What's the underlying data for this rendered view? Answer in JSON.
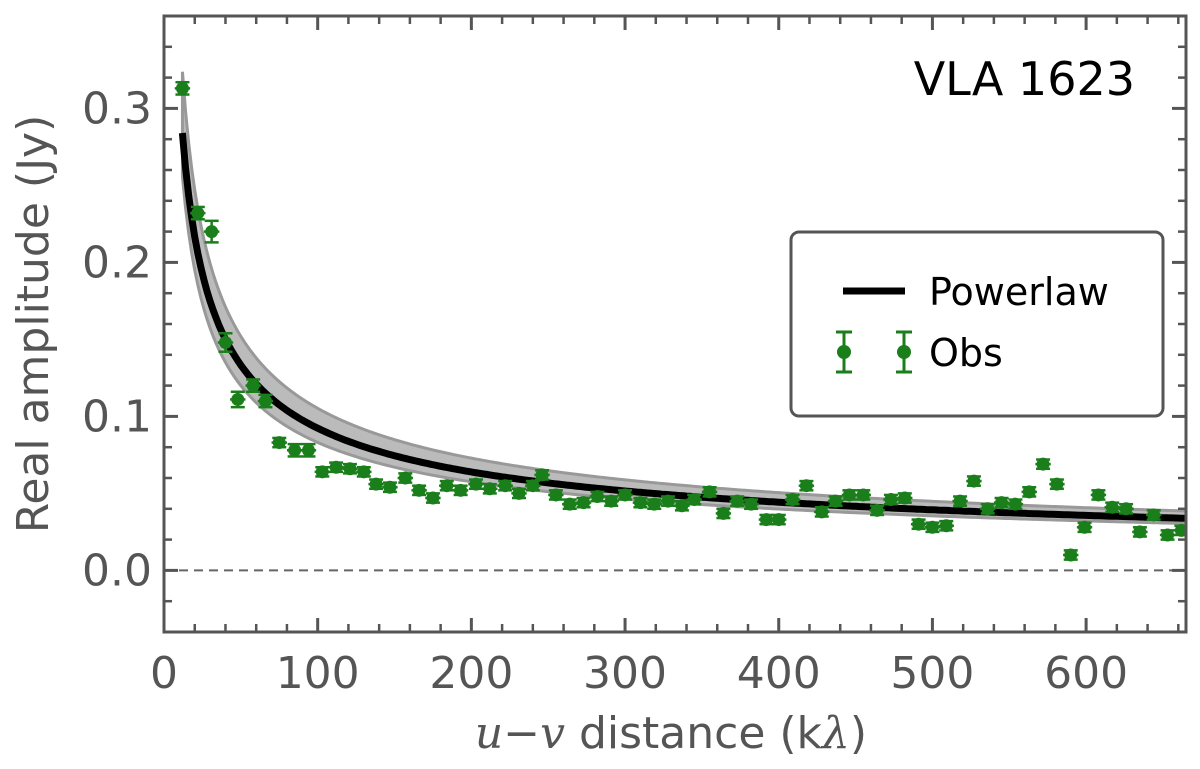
{
  "chart_data": {
    "type": "scatter",
    "title": "VLA 1623",
    "xlabel_parts": [
      "u",
      "−",
      "v",
      " distance (k",
      "λ",
      ")"
    ],
    "ylabel": "Real amplitude (Jy)",
    "xlim": [
      0,
      665
    ],
    "ylim": [
      -0.04,
      0.36
    ],
    "xticks": [
      0,
      100,
      200,
      300,
      400,
      500,
      600
    ],
    "xtick_labels": [
      "0",
      "100",
      "200",
      "300",
      "400",
      "500",
      "600"
    ],
    "xticks_minor": [
      20,
      40,
      60,
      80,
      120,
      140,
      160,
      180,
      220,
      240,
      260,
      280,
      320,
      340,
      360,
      380,
      420,
      440,
      460,
      480,
      520,
      540,
      560,
      580,
      620,
      640,
      660
    ],
    "yticks": [
      0.0,
      0.1,
      0.2,
      0.3
    ],
    "ytick_labels": [
      "0.0",
      "0.1",
      "0.2",
      "0.3"
    ],
    "yticks_minor": [
      -0.02,
      0.02,
      0.04,
      0.06,
      0.08,
      0.12,
      0.14,
      0.16,
      0.18,
      0.22,
      0.24,
      0.26,
      0.28,
      0.32,
      0.34
    ],
    "zero_line": 0.0,
    "legend": {
      "position": "right",
      "entries": [
        {
          "label": "Powerlaw",
          "kind": "line"
        },
        {
          "label": "Obs",
          "kind": "errorbar"
        }
      ]
    },
    "model": {
      "name": "Powerlaw",
      "form": "a * x^(-b)",
      "a": 1.06,
      "b": 0.53,
      "x_start": 12,
      "band_upper_factor": 1.14,
      "band_lower_factor": 0.9
    },
    "series": [
      {
        "name": "Obs",
        "x": [
          12,
          22,
          31,
          40,
          48,
          58,
          66,
          75,
          85,
          94,
          103,
          112,
          121,
          130,
          138,
          147,
          157,
          166,
          175,
          184,
          193,
          203,
          212,
          222,
          231,
          240,
          246,
          255,
          264,
          273,
          282,
          291,
          300,
          310,
          319,
          328,
          337,
          345,
          355,
          364,
          373,
          382,
          392,
          400,
          409,
          418,
          428,
          437,
          446,
          455,
          464,
          473,
          482,
          491,
          500,
          509,
          518,
          527,
          536,
          545,
          554,
          563,
          572,
          581,
          590,
          599,
          608,
          617,
          626,
          635,
          644,
          653,
          662
        ],
        "y": [
          0.313,
          0.232,
          0.22,
          0.148,
          0.111,
          0.12,
          0.11,
          0.083,
          0.078,
          0.078,
          0.064,
          0.067,
          0.066,
          0.064,
          0.056,
          0.054,
          0.06,
          0.052,
          0.047,
          0.055,
          0.052,
          0.056,
          0.053,
          0.055,
          0.05,
          0.055,
          0.062,
          0.049,
          0.043,
          0.044,
          0.048,
          0.045,
          0.049,
          0.044,
          0.043,
          0.045,
          0.042,
          0.046,
          0.051,
          0.037,
          0.045,
          0.043,
          0.033,
          0.033,
          0.046,
          0.055,
          0.038,
          0.045,
          0.049,
          0.049,
          0.039,
          0.046,
          0.047,
          0.03,
          0.028,
          0.029,
          0.045,
          0.058,
          0.04,
          0.044,
          0.043,
          0.051,
          0.069,
          0.056,
          0.01,
          0.028,
          0.049,
          0.041,
          0.04,
          0.025,
          0.036,
          0.023,
          0.026
        ],
        "yerr": [
          0.004,
          0.004,
          0.007,
          0.006,
          0.005,
          0.004,
          0.004,
          0.003,
          0.004,
          0.004,
          0.003,
          0.003,
          0.003,
          0.003,
          0.003,
          0.003,
          0.003,
          0.003,
          0.003,
          0.003,
          0.003,
          0.003,
          0.003,
          0.003,
          0.003,
          0.003,
          0.003,
          0.003,
          0.003,
          0.003,
          0.003,
          0.003,
          0.003,
          0.003,
          0.003,
          0.003,
          0.003,
          0.003,
          0.003,
          0.003,
          0.003,
          0.003,
          0.003,
          0.003,
          0.003,
          0.003,
          0.003,
          0.003,
          0.003,
          0.003,
          0.003,
          0.003,
          0.003,
          0.003,
          0.003,
          0.003,
          0.003,
          0.003,
          0.003,
          0.003,
          0.003,
          0.003,
          0.003,
          0.003,
          0.003,
          0.003,
          0.003,
          0.003,
          0.003,
          0.003,
          0.003,
          0.003,
          0.003
        ],
        "xerr": [
          5,
          5,
          5,
          5,
          5,
          5,
          5,
          5,
          5,
          5,
          5,
          5,
          5,
          5,
          5,
          5,
          5,
          5,
          5,
          5,
          5,
          5,
          5,
          5,
          5,
          5,
          5,
          5,
          5,
          5,
          5,
          5,
          5,
          5,
          5,
          5,
          5,
          5,
          5,
          5,
          5,
          5,
          5,
          5,
          5,
          5,
          5,
          5,
          5,
          5,
          5,
          5,
          5,
          5,
          5,
          5,
          5,
          5,
          5,
          5,
          5,
          5,
          5,
          5,
          5,
          5,
          5,
          5,
          5,
          5,
          5,
          5,
          5
        ]
      }
    ],
    "colors": {
      "obs": "#1a7f1a",
      "model_line": "#000000",
      "band_fill": "#bbbbbb",
      "band_edge": "#999999",
      "axes": "#555555",
      "zero_line": "#666666"
    }
  }
}
